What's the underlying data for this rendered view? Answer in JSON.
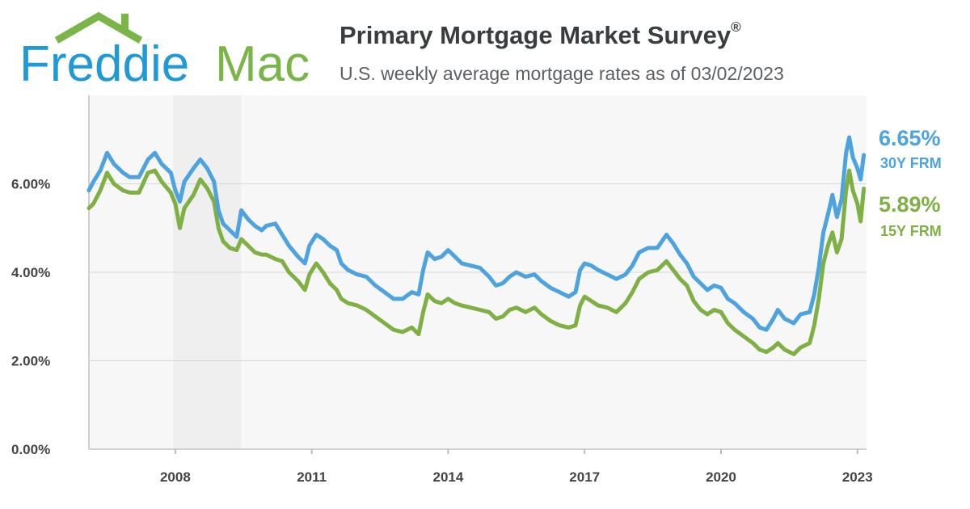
{
  "header": {
    "brand": "Freddie Mac",
    "title": "Primary Mortgage Market Survey",
    "title_mark": "®",
    "subtitle": "U.S. weekly average mortgage rates as of 03/02/2023"
  },
  "colors": {
    "series_30y": "#4da3e0",
    "series_15y": "#7eb043",
    "logo_blue": "#1f9ad6",
    "logo_green": "#7ab547",
    "grid": "#d8d8d8",
    "plot_bg": "#f7f7f7"
  },
  "chart_data": {
    "type": "line",
    "title": "Primary Mortgage Market Survey®",
    "subtitle": "U.S. weekly average mortgage rates as of 03/02/2023",
    "xlim": [
      2006.1,
      2023.2
    ],
    "ylim": [
      0,
      8
    ],
    "y_ticks": [
      0,
      2,
      4,
      6
    ],
    "y_tick_labels": [
      "0.00%",
      "2.00%",
      "4.00%",
      "6.00%"
    ],
    "x_ticks": [
      2008,
      2011,
      2014,
      2017,
      2020,
      2023
    ],
    "x_tick_labels": [
      "2008",
      "2011",
      "2014",
      "2017",
      "2020",
      "2023"
    ],
    "grid": "horizontal",
    "legend": "right end labels",
    "series": [
      {
        "name": "30Y FRM",
        "end_label": "6.65%",
        "points": [
          [
            2006.1,
            5.85
          ],
          [
            2006.2,
            6.05
          ],
          [
            2006.35,
            6.3
          ],
          [
            2006.5,
            6.7
          ],
          [
            2006.65,
            6.45
          ],
          [
            2006.85,
            6.25
          ],
          [
            2007.0,
            6.15
          ],
          [
            2007.2,
            6.15
          ],
          [
            2007.4,
            6.55
          ],
          [
            2007.55,
            6.7
          ],
          [
            2007.7,
            6.45
          ],
          [
            2007.9,
            6.25
          ],
          [
            2008.0,
            5.85
          ],
          [
            2008.1,
            5.6
          ],
          [
            2008.2,
            6.05
          ],
          [
            2008.4,
            6.35
          ],
          [
            2008.55,
            6.55
          ],
          [
            2008.7,
            6.35
          ],
          [
            2008.85,
            6.05
          ],
          [
            2008.95,
            5.4
          ],
          [
            2009.05,
            5.1
          ],
          [
            2009.2,
            4.95
          ],
          [
            2009.35,
            4.8
          ],
          [
            2009.45,
            5.4
          ],
          [
            2009.6,
            5.2
          ],
          [
            2009.75,
            5.05
          ],
          [
            2009.9,
            4.95
          ],
          [
            2010.0,
            5.05
          ],
          [
            2010.2,
            5.1
          ],
          [
            2010.35,
            4.85
          ],
          [
            2010.5,
            4.6
          ],
          [
            2010.7,
            4.35
          ],
          [
            2010.85,
            4.2
          ],
          [
            2010.95,
            4.6
          ],
          [
            2011.1,
            4.85
          ],
          [
            2011.25,
            4.75
          ],
          [
            2011.4,
            4.6
          ],
          [
            2011.55,
            4.5
          ],
          [
            2011.65,
            4.2
          ],
          [
            2011.8,
            4.05
          ],
          [
            2012.0,
            3.95
          ],
          [
            2012.2,
            3.9
          ],
          [
            2012.4,
            3.7
          ],
          [
            2012.6,
            3.55
          ],
          [
            2012.8,
            3.4
          ],
          [
            2013.0,
            3.4
          ],
          [
            2013.2,
            3.55
          ],
          [
            2013.35,
            3.5
          ],
          [
            2013.45,
            4.05
          ],
          [
            2013.55,
            4.45
          ],
          [
            2013.7,
            4.3
          ],
          [
            2013.85,
            4.35
          ],
          [
            2014.0,
            4.5
          ],
          [
            2014.15,
            4.35
          ],
          [
            2014.3,
            4.2
          ],
          [
            2014.5,
            4.15
          ],
          [
            2014.7,
            4.1
          ],
          [
            2014.9,
            3.9
          ],
          [
            2015.05,
            3.7
          ],
          [
            2015.2,
            3.75
          ],
          [
            2015.35,
            3.9
          ],
          [
            2015.5,
            4.0
          ],
          [
            2015.7,
            3.9
          ],
          [
            2015.9,
            3.95
          ],
          [
            2016.05,
            3.8
          ],
          [
            2016.25,
            3.65
          ],
          [
            2016.45,
            3.55
          ],
          [
            2016.65,
            3.45
          ],
          [
            2016.8,
            3.55
          ],
          [
            2016.9,
            4.05
          ],
          [
            2017.0,
            4.2
          ],
          [
            2017.15,
            4.15
          ],
          [
            2017.3,
            4.05
          ],
          [
            2017.5,
            3.95
          ],
          [
            2017.7,
            3.85
          ],
          [
            2017.9,
            3.95
          ],
          [
            2018.05,
            4.15
          ],
          [
            2018.2,
            4.45
          ],
          [
            2018.4,
            4.55
          ],
          [
            2018.6,
            4.55
          ],
          [
            2018.8,
            4.85
          ],
          [
            2018.95,
            4.65
          ],
          [
            2019.1,
            4.4
          ],
          [
            2019.25,
            4.2
          ],
          [
            2019.4,
            3.9
          ],
          [
            2019.55,
            3.75
          ],
          [
            2019.7,
            3.6
          ],
          [
            2019.85,
            3.7
          ],
          [
            2020.0,
            3.65
          ],
          [
            2020.15,
            3.4
          ],
          [
            2020.3,
            3.3
          ],
          [
            2020.5,
            3.1
          ],
          [
            2020.7,
            2.95
          ],
          [
            2020.85,
            2.75
          ],
          [
            2021.0,
            2.7
          ],
          [
            2021.15,
            2.95
          ],
          [
            2021.25,
            3.15
          ],
          [
            2021.4,
            2.95
          ],
          [
            2021.6,
            2.85
          ],
          [
            2021.75,
            3.05
          ],
          [
            2021.95,
            3.1
          ],
          [
            2022.05,
            3.5
          ],
          [
            2022.15,
            4.1
          ],
          [
            2022.25,
            4.9
          ],
          [
            2022.35,
            5.3
          ],
          [
            2022.45,
            5.75
          ],
          [
            2022.55,
            5.25
          ],
          [
            2022.65,
            5.65
          ],
          [
            2022.75,
            6.7
          ],
          [
            2022.82,
            7.05
          ],
          [
            2022.9,
            6.6
          ],
          [
            2023.0,
            6.35
          ],
          [
            2023.07,
            6.1
          ],
          [
            2023.14,
            6.65
          ]
        ]
      },
      {
        "name": "15Y FRM",
        "end_label": "5.89%",
        "points": [
          [
            2006.1,
            5.45
          ],
          [
            2006.2,
            5.55
          ],
          [
            2006.35,
            5.85
          ],
          [
            2006.5,
            6.25
          ],
          [
            2006.65,
            6.0
          ],
          [
            2006.85,
            5.85
          ],
          [
            2007.0,
            5.8
          ],
          [
            2007.2,
            5.8
          ],
          [
            2007.4,
            6.25
          ],
          [
            2007.55,
            6.3
          ],
          [
            2007.7,
            6.05
          ],
          [
            2007.9,
            5.8
          ],
          [
            2008.0,
            5.55
          ],
          [
            2008.1,
            5.0
          ],
          [
            2008.2,
            5.45
          ],
          [
            2008.4,
            5.75
          ],
          [
            2008.55,
            6.1
          ],
          [
            2008.7,
            5.9
          ],
          [
            2008.85,
            5.6
          ],
          [
            2008.95,
            5.0
          ],
          [
            2009.05,
            4.7
          ],
          [
            2009.2,
            4.55
          ],
          [
            2009.35,
            4.5
          ],
          [
            2009.45,
            4.75
          ],
          [
            2009.6,
            4.6
          ],
          [
            2009.75,
            4.45
          ],
          [
            2009.9,
            4.4
          ],
          [
            2010.0,
            4.4
          ],
          [
            2010.2,
            4.3
          ],
          [
            2010.35,
            4.25
          ],
          [
            2010.5,
            4.0
          ],
          [
            2010.7,
            3.8
          ],
          [
            2010.85,
            3.6
          ],
          [
            2010.95,
            3.95
          ],
          [
            2011.1,
            4.2
          ],
          [
            2011.25,
            4.0
          ],
          [
            2011.4,
            3.75
          ],
          [
            2011.55,
            3.6
          ],
          [
            2011.65,
            3.4
          ],
          [
            2011.8,
            3.3
          ],
          [
            2012.0,
            3.25
          ],
          [
            2012.2,
            3.15
          ],
          [
            2012.4,
            3.0
          ],
          [
            2012.6,
            2.85
          ],
          [
            2012.8,
            2.7
          ],
          [
            2013.0,
            2.65
          ],
          [
            2013.2,
            2.75
          ],
          [
            2013.35,
            2.6
          ],
          [
            2013.45,
            3.1
          ],
          [
            2013.55,
            3.5
          ],
          [
            2013.7,
            3.35
          ],
          [
            2013.85,
            3.3
          ],
          [
            2014.0,
            3.4
          ],
          [
            2014.15,
            3.3
          ],
          [
            2014.3,
            3.25
          ],
          [
            2014.5,
            3.2
          ],
          [
            2014.7,
            3.15
          ],
          [
            2014.9,
            3.1
          ],
          [
            2015.05,
            2.95
          ],
          [
            2015.2,
            3.0
          ],
          [
            2015.35,
            3.15
          ],
          [
            2015.5,
            3.2
          ],
          [
            2015.7,
            3.1
          ],
          [
            2015.9,
            3.2
          ],
          [
            2016.05,
            3.05
          ],
          [
            2016.25,
            2.9
          ],
          [
            2016.45,
            2.8
          ],
          [
            2016.65,
            2.75
          ],
          [
            2016.8,
            2.8
          ],
          [
            2016.9,
            3.25
          ],
          [
            2017.0,
            3.45
          ],
          [
            2017.15,
            3.35
          ],
          [
            2017.3,
            3.25
          ],
          [
            2017.5,
            3.2
          ],
          [
            2017.7,
            3.1
          ],
          [
            2017.9,
            3.3
          ],
          [
            2018.05,
            3.55
          ],
          [
            2018.2,
            3.85
          ],
          [
            2018.4,
            4.0
          ],
          [
            2018.6,
            4.05
          ],
          [
            2018.8,
            4.25
          ],
          [
            2018.95,
            4.05
          ],
          [
            2019.1,
            3.85
          ],
          [
            2019.25,
            3.7
          ],
          [
            2019.4,
            3.35
          ],
          [
            2019.55,
            3.15
          ],
          [
            2019.7,
            3.05
          ],
          [
            2019.85,
            3.15
          ],
          [
            2020.0,
            3.1
          ],
          [
            2020.15,
            2.85
          ],
          [
            2020.3,
            2.7
          ],
          [
            2020.5,
            2.55
          ],
          [
            2020.7,
            2.4
          ],
          [
            2020.85,
            2.25
          ],
          [
            2021.0,
            2.2
          ],
          [
            2021.15,
            2.3
          ],
          [
            2021.25,
            2.4
          ],
          [
            2021.4,
            2.25
          ],
          [
            2021.6,
            2.15
          ],
          [
            2021.75,
            2.3
          ],
          [
            2021.95,
            2.4
          ],
          [
            2022.05,
            2.8
          ],
          [
            2022.15,
            3.4
          ],
          [
            2022.25,
            4.2
          ],
          [
            2022.35,
            4.6
          ],
          [
            2022.45,
            4.9
          ],
          [
            2022.55,
            4.45
          ],
          [
            2022.65,
            4.75
          ],
          [
            2022.75,
            5.85
          ],
          [
            2022.82,
            6.3
          ],
          [
            2022.9,
            5.85
          ],
          [
            2023.0,
            5.55
          ],
          [
            2023.07,
            5.15
          ],
          [
            2023.14,
            5.89
          ]
        ]
      }
    ]
  }
}
